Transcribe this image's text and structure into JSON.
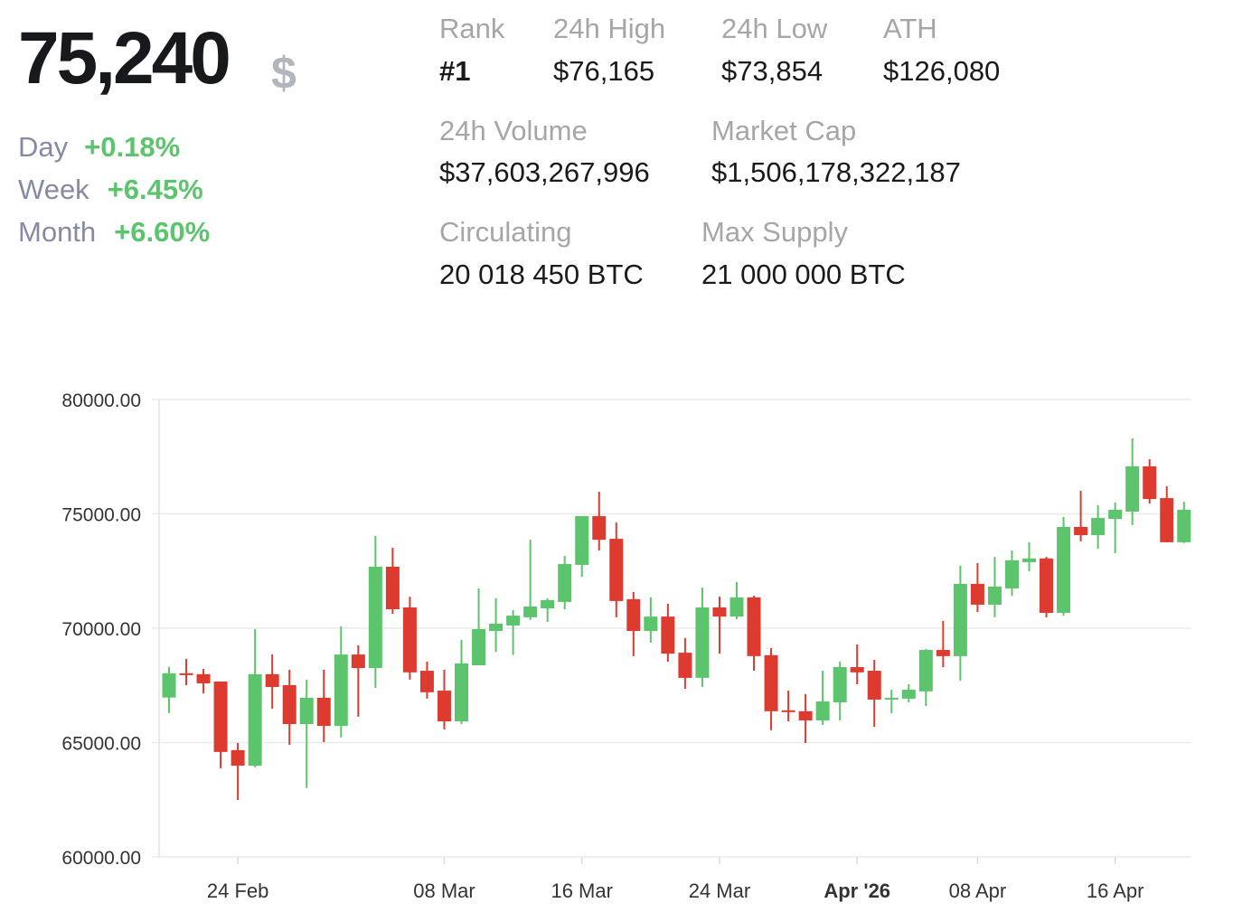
{
  "header": {
    "price": "75,240",
    "currency_symbol": "$",
    "changes": [
      {
        "label": "Day",
        "value": "+0.18%"
      },
      {
        "label": "Week",
        "value": "+6.45%"
      },
      {
        "label": "Month",
        "value": "+6.60%"
      }
    ]
  },
  "stats": {
    "rank": {
      "label": "Rank",
      "value": "#1"
    },
    "high_24h": {
      "label": "24h High",
      "value": "$76,165"
    },
    "low_24h": {
      "label": "24h Low",
      "value": "$73,854"
    },
    "ath": {
      "label": "ATH",
      "value": "$126,080"
    },
    "volume_24h": {
      "label": "24h Volume",
      "value": "$37,603,267,996"
    },
    "market_cap": {
      "label": "Market Cap",
      "value": "$1,506,178,322,187"
    },
    "circulating": {
      "label": "Circulating",
      "value": "20 018 450 BTC"
    },
    "max_supply": {
      "label": "Max Supply",
      "value": "21 000 000 BTC"
    }
  },
  "colors": {
    "up": "#5cc46d",
    "down": "#dd3b2f",
    "grid": "#ebebeb",
    "axis_text": "#333333"
  },
  "chart_data": {
    "type": "candlestick",
    "ylim": [
      60000,
      80000
    ],
    "y_ticks": [
      "60000.00",
      "65000.00",
      "70000.00",
      "75000.00",
      "80000.00"
    ],
    "grid": true,
    "x_ticks": [
      {
        "label": "24 Feb",
        "date": "2026-02-24",
        "bold": false
      },
      {
        "label": "08 Mar",
        "date": "2026-03-08",
        "bold": false
      },
      {
        "label": "16 Mar",
        "date": "2026-03-16",
        "bold": false
      },
      {
        "label": "24 Mar",
        "date": "2026-03-24",
        "bold": false
      },
      {
        "label": "Apr '26",
        "date": "2026-04-01",
        "bold": true
      },
      {
        "label": "08 Apr",
        "date": "2026-04-08",
        "bold": false
      },
      {
        "label": "16 Apr",
        "date": "2026-04-16",
        "bold": false
      }
    ],
    "columns": [
      "date",
      "open",
      "high",
      "low",
      "close"
    ],
    "candles": [
      [
        "2026-02-20",
        66970,
        68310,
        66290,
        68030
      ],
      [
        "2026-02-21",
        68030,
        68660,
        67510,
        67950
      ],
      [
        "2026-02-22",
        67990,
        68220,
        67150,
        67590
      ],
      [
        "2026-02-23",
        67670,
        67670,
        63880,
        64590
      ],
      [
        "2026-02-24",
        64670,
        64980,
        62490,
        63990
      ],
      [
        "2026-02-25",
        63990,
        69960,
        63920,
        67990
      ],
      [
        "2026-02-26",
        67990,
        68850,
        66480,
        67430
      ],
      [
        "2026-02-27",
        67510,
        68180,
        64900,
        65810
      ],
      [
        "2026-02-28",
        65810,
        67750,
        63010,
        66960
      ],
      [
        "2026-03-01",
        66960,
        68180,
        65020,
        65730
      ],
      [
        "2026-03-02",
        65730,
        70080,
        65220,
        68850
      ],
      [
        "2026-03-03",
        68850,
        69250,
        66130,
        68260
      ],
      [
        "2026-03-04",
        68260,
        74030,
        67390,
        72690
      ],
      [
        "2026-03-05",
        72690,
        73520,
        70630,
        70830
      ],
      [
        "2026-03-06",
        70910,
        71380,
        67750,
        68070
      ],
      [
        "2026-03-07",
        68140,
        68540,
        66920,
        67200
      ],
      [
        "2026-03-08",
        67270,
        68180,
        65580,
        65930
      ],
      [
        "2026-03-09",
        65930,
        69490,
        65810,
        68460
      ],
      [
        "2026-03-10",
        68380,
        71740,
        68380,
        69960
      ],
      [
        "2026-03-11",
        69880,
        71310,
        68970,
        70200
      ],
      [
        "2026-03-12",
        70120,
        70790,
        68830,
        70550
      ],
      [
        "2026-03-13",
        70480,
        73870,
        70360,
        70950
      ],
      [
        "2026-03-14",
        70870,
        71310,
        70280,
        71230
      ],
      [
        "2026-03-15",
        71150,
        73160,
        70830,
        72810
      ],
      [
        "2026-03-16",
        72770,
        74900,
        72250,
        74900
      ],
      [
        "2026-03-17",
        74900,
        75970,
        73400,
        73870
      ],
      [
        "2026-03-18",
        73910,
        74620,
        70480,
        71190
      ],
      [
        "2026-03-19",
        71270,
        71580,
        68780,
        69880
      ],
      [
        "2026-03-20",
        69880,
        71350,
        69370,
        70510
      ],
      [
        "2026-03-21",
        70510,
        71070,
        68540,
        68890
      ],
      [
        "2026-03-22",
        68930,
        69570,
        67350,
        67830
      ],
      [
        "2026-03-23",
        67830,
        71780,
        67430,
        70910
      ],
      [
        "2026-03-24",
        70910,
        71380,
        68890,
        70510
      ],
      [
        "2026-03-25",
        70510,
        72020,
        70400,
        71350
      ],
      [
        "2026-03-26",
        71350,
        71420,
        68140,
        68780
      ],
      [
        "2026-03-27",
        68820,
        69130,
        65540,
        66370
      ],
      [
        "2026-03-28",
        66410,
        67270,
        65930,
        66370
      ],
      [
        "2026-03-29",
        66370,
        67120,
        64980,
        65970
      ],
      [
        "2026-03-30",
        65970,
        68140,
        65770,
        66800
      ],
      [
        "2026-03-31",
        66760,
        68540,
        65970,
        68300
      ],
      [
        "2026-04-01",
        68300,
        69290,
        67550,
        68070
      ],
      [
        "2026-04-02",
        68140,
        68620,
        65690,
        66880
      ],
      [
        "2026-04-03",
        66880,
        67310,
        66290,
        66960
      ],
      [
        "2026-04-04",
        66920,
        67550,
        66760,
        67310
      ],
      [
        "2026-04-05",
        67240,
        69090,
        66600,
        69050
      ],
      [
        "2026-04-06",
        69050,
        70320,
        68300,
        68780
      ],
      [
        "2026-04-07",
        68780,
        72730,
        67710,
        71940
      ],
      [
        "2026-04-08",
        71940,
        72850,
        70710,
        71030
      ],
      [
        "2026-04-09",
        71030,
        73120,
        70480,
        71820
      ],
      [
        "2026-04-10",
        71740,
        73400,
        71420,
        72970
      ],
      [
        "2026-04-11",
        72890,
        73760,
        72490,
        73050
      ],
      [
        "2026-04-12",
        73050,
        73120,
        70480,
        70670
      ],
      [
        "2026-04-13",
        70670,
        74860,
        70550,
        74430
      ],
      [
        "2026-04-14",
        74430,
        76010,
        73800,
        74070
      ],
      [
        "2026-04-15",
        74070,
        75380,
        73480,
        74820
      ],
      [
        "2026-04-16",
        74780,
        75500,
        73280,
        75180
      ],
      [
        "2026-04-17",
        75100,
        78300,
        74510,
        77080
      ],
      [
        "2026-04-18",
        77080,
        77390,
        75450,
        75650
      ],
      [
        "2026-04-19",
        75690,
        76210,
        73760,
        73760
      ],
      [
        "2026-04-20",
        73760,
        75530,
        73720,
        75180
      ]
    ]
  }
}
